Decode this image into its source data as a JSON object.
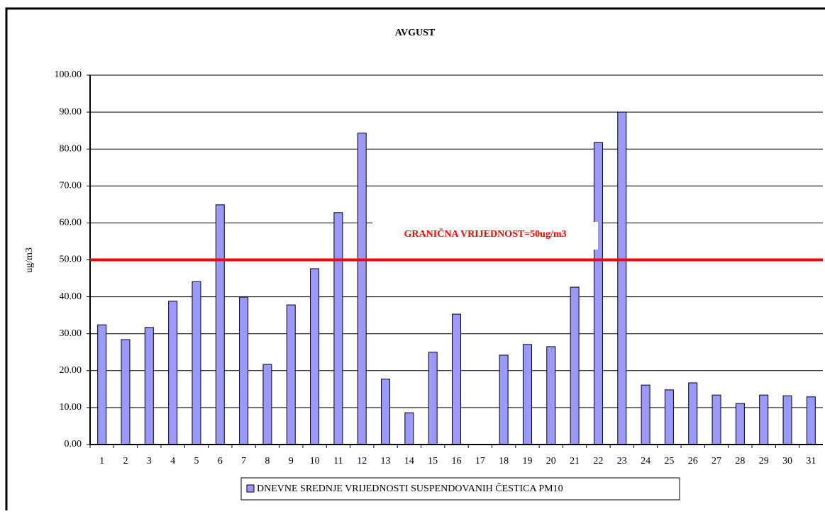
{
  "chart_data": {
    "type": "bar",
    "title": "AVGUST",
    "y_label": "ug/m3",
    "categories": [
      "1",
      "2",
      "3",
      "4",
      "5",
      "6",
      "7",
      "8",
      "9",
      "10",
      "11",
      "12",
      "13",
      "14",
      "15",
      "16",
      "17",
      "18",
      "19",
      "20",
      "21",
      "22",
      "23",
      "24",
      "25",
      "26",
      "27",
      "28",
      "29",
      "30",
      "31"
    ],
    "series": [
      {
        "name": "DNEVNE SREDNJE VRIJEDNOSTI SUSPENDOVANIH ČESTICA PM10",
        "color": "#9999ff",
        "values": [
          32.4,
          28.4,
          31.7,
          38.8,
          44.1,
          64.9,
          39.9,
          21.7,
          37.8,
          47.6,
          62.8,
          84.3,
          17.7,
          8.6,
          25.0,
          35.3,
          null,
          24.2,
          27.1,
          26.5,
          42.6,
          81.8,
          90.0,
          16.1,
          14.8,
          16.7,
          13.4,
          11.1,
          13.4,
          13.2,
          12.9
        ]
      }
    ],
    "ylim": [
      0,
      100
    ],
    "yticks": [
      {
        "value": 0,
        "label": "0.00"
      },
      {
        "value": 10,
        "label": "10.00"
      },
      {
        "value": 20,
        "label": "20.00"
      },
      {
        "value": 30,
        "label": "30.00"
      },
      {
        "value": 40,
        "label": "40.00"
      },
      {
        "value": 50,
        "label": "50.00"
      },
      {
        "value": 60,
        "label": "60.00"
      },
      {
        "value": 70,
        "label": "70.00"
      },
      {
        "value": 80,
        "label": "80.00"
      },
      {
        "value": 90,
        "label": "90.00"
      },
      {
        "value": 100,
        "label": "100.00"
      }
    ],
    "grid": true,
    "threshold": 50,
    "threshold_color": "#ff0000",
    "annotation": "GRANIČNA VRIJEDNOST=50ug/m3",
    "legend": "bottom"
  }
}
